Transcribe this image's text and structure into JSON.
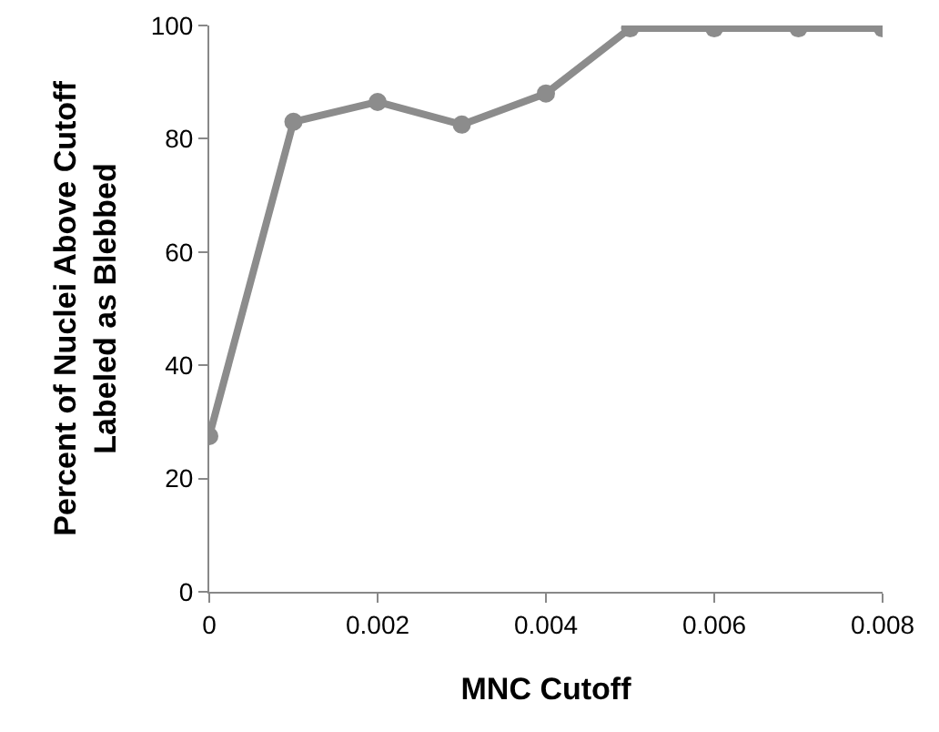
{
  "chart_data": {
    "type": "line",
    "xlabel": "MNC Cutoff",
    "ylabel": "Percent of Nuclei Above Cutoff\nLabeled as Blebbed",
    "x": [
      0,
      0.001,
      0.002,
      0.003,
      0.004,
      0.005,
      0.006,
      0.007,
      0.008
    ],
    "series": [
      {
        "color": "#8c8c8c",
        "values": [
          27.5,
          83,
          86.5,
          82.5,
          88,
          99.5,
          99.5,
          99.5,
          99.5
        ]
      }
    ],
    "xlim": [
      0,
      0.008
    ],
    "xticks": [
      0,
      0.002,
      0.004,
      0.006,
      0.008
    ],
    "ylim": [
      0,
      100
    ],
    "yticks": [
      0,
      20,
      40,
      60,
      80,
      100
    ],
    "grid": false,
    "marker": "circle",
    "line_style": "solid"
  }
}
